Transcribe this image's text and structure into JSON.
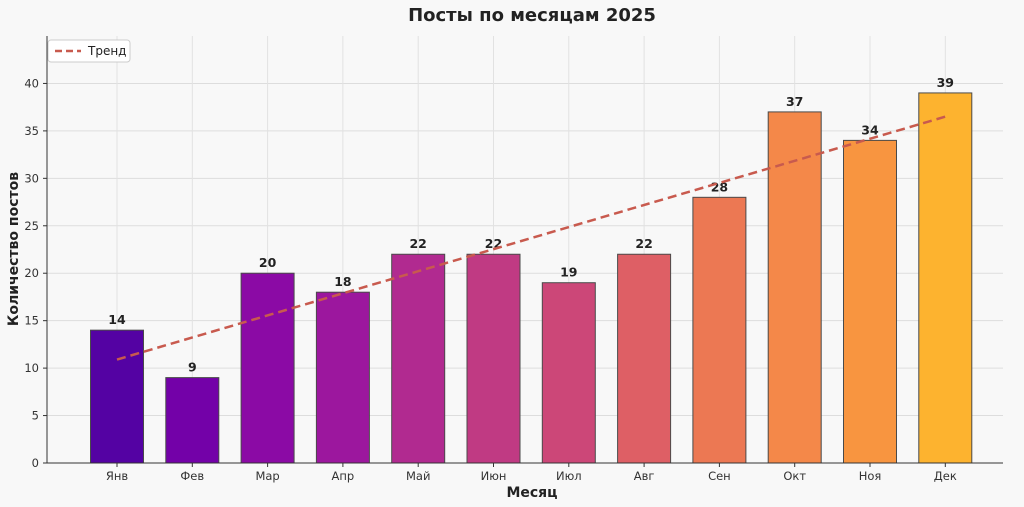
{
  "chart_data": {
    "type": "bar",
    "title": "Посты по месяцам 2025",
    "xlabel": "Месяц",
    "ylabel": "Количество постов",
    "categories": [
      "Янв",
      "Фев",
      "Мар",
      "Апр",
      "Май",
      "Июн",
      "Июл",
      "Авг",
      "Сен",
      "Окт",
      "Ноя",
      "Дек"
    ],
    "values": [
      14,
      9,
      20,
      18,
      22,
      22,
      19,
      22,
      28,
      37,
      34,
      39
    ],
    "bar_colors": [
      "#5402a3",
      "#7301a8",
      "#8b0aa5",
      "#9c179e",
      "#b12a90",
      "#c03a83",
      "#cc4778",
      "#de5f65",
      "#ec7853",
      "#f48849",
      "#f89540",
      "#fdb32f"
    ],
    "ylim": [
      0,
      45
    ],
    "yticks": [
      0,
      5,
      10,
      15,
      20,
      25,
      30,
      35,
      40
    ],
    "grid": true,
    "trend": {
      "name": "Тренд",
      "style": "dashed",
      "color": "#c85a4e",
      "start": 10.9,
      "end": 36.5
    },
    "legend": {
      "position": "top-left",
      "entries": [
        "Тренд"
      ]
    },
    "show_value_labels": true
  }
}
